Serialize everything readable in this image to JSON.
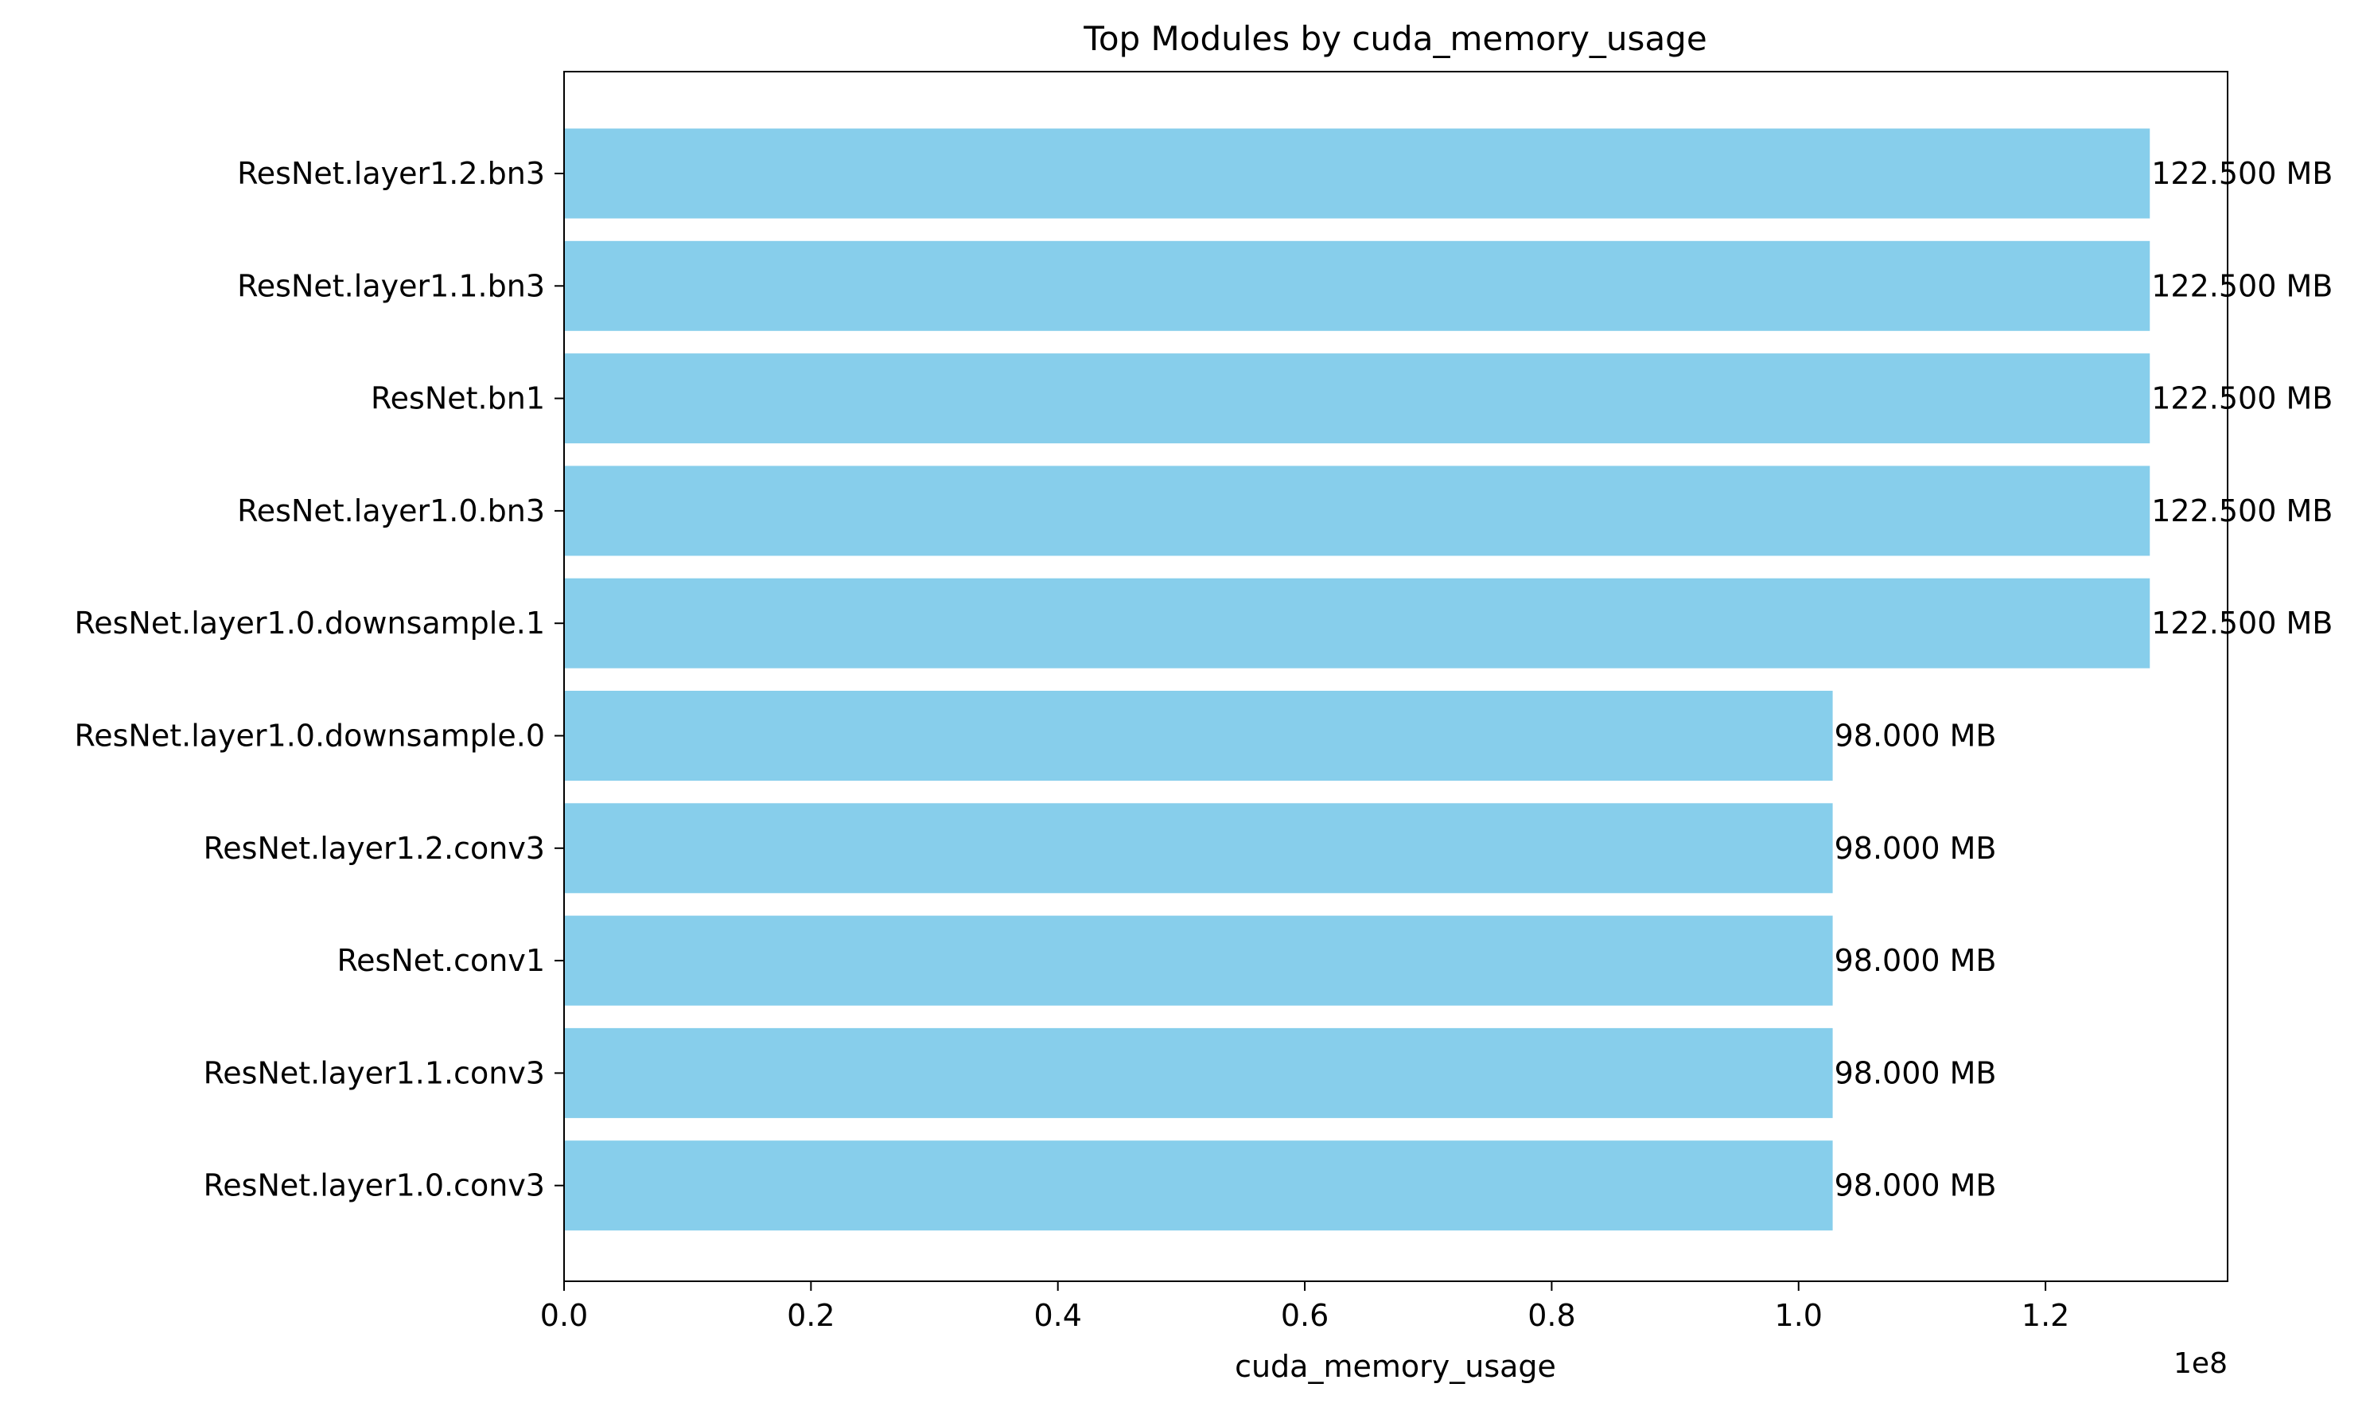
{
  "chart_data": {
    "type": "bar",
    "orientation": "horizontal",
    "title": "Top Modules by cuda_memory_usage",
    "xlabel": "cuda_memory_usage",
    "ylabel": "",
    "x_offset_label": "1e8",
    "xlim": [
      0,
      134750000
    ],
    "xticks": [
      0,
      20000000,
      40000000,
      60000000,
      80000000,
      100000000,
      120000000
    ],
    "xtick_labels": [
      "0.0",
      "0.2",
      "0.4",
      "0.6",
      "0.8",
      "1.0",
      "1.2"
    ],
    "grid": false,
    "bar_color": "#87ceeb",
    "categories": [
      "ResNet.layer1.2.bn3",
      "ResNet.layer1.1.bn3",
      "ResNet.bn1",
      "ResNet.layer1.0.bn3",
      "ResNet.layer1.0.downsample.1",
      "ResNet.layer1.0.downsample.0",
      "ResNet.layer1.2.conv3",
      "ResNet.conv1",
      "ResNet.layer1.1.conv3",
      "ResNet.layer1.0.conv3"
    ],
    "values": [
      128450560,
      128450560,
      128450560,
      128450560,
      128450560,
      102760448,
      102760448,
      102760448,
      102760448,
      102760448
    ],
    "data_labels": [
      "122.500 MB",
      "122.500 MB",
      "122.500 MB",
      "122.500 MB",
      "122.500 MB",
      "98.000 MB",
      "98.000 MB",
      "98.000 MB",
      "98.000 MB",
      "98.000 MB"
    ]
  }
}
